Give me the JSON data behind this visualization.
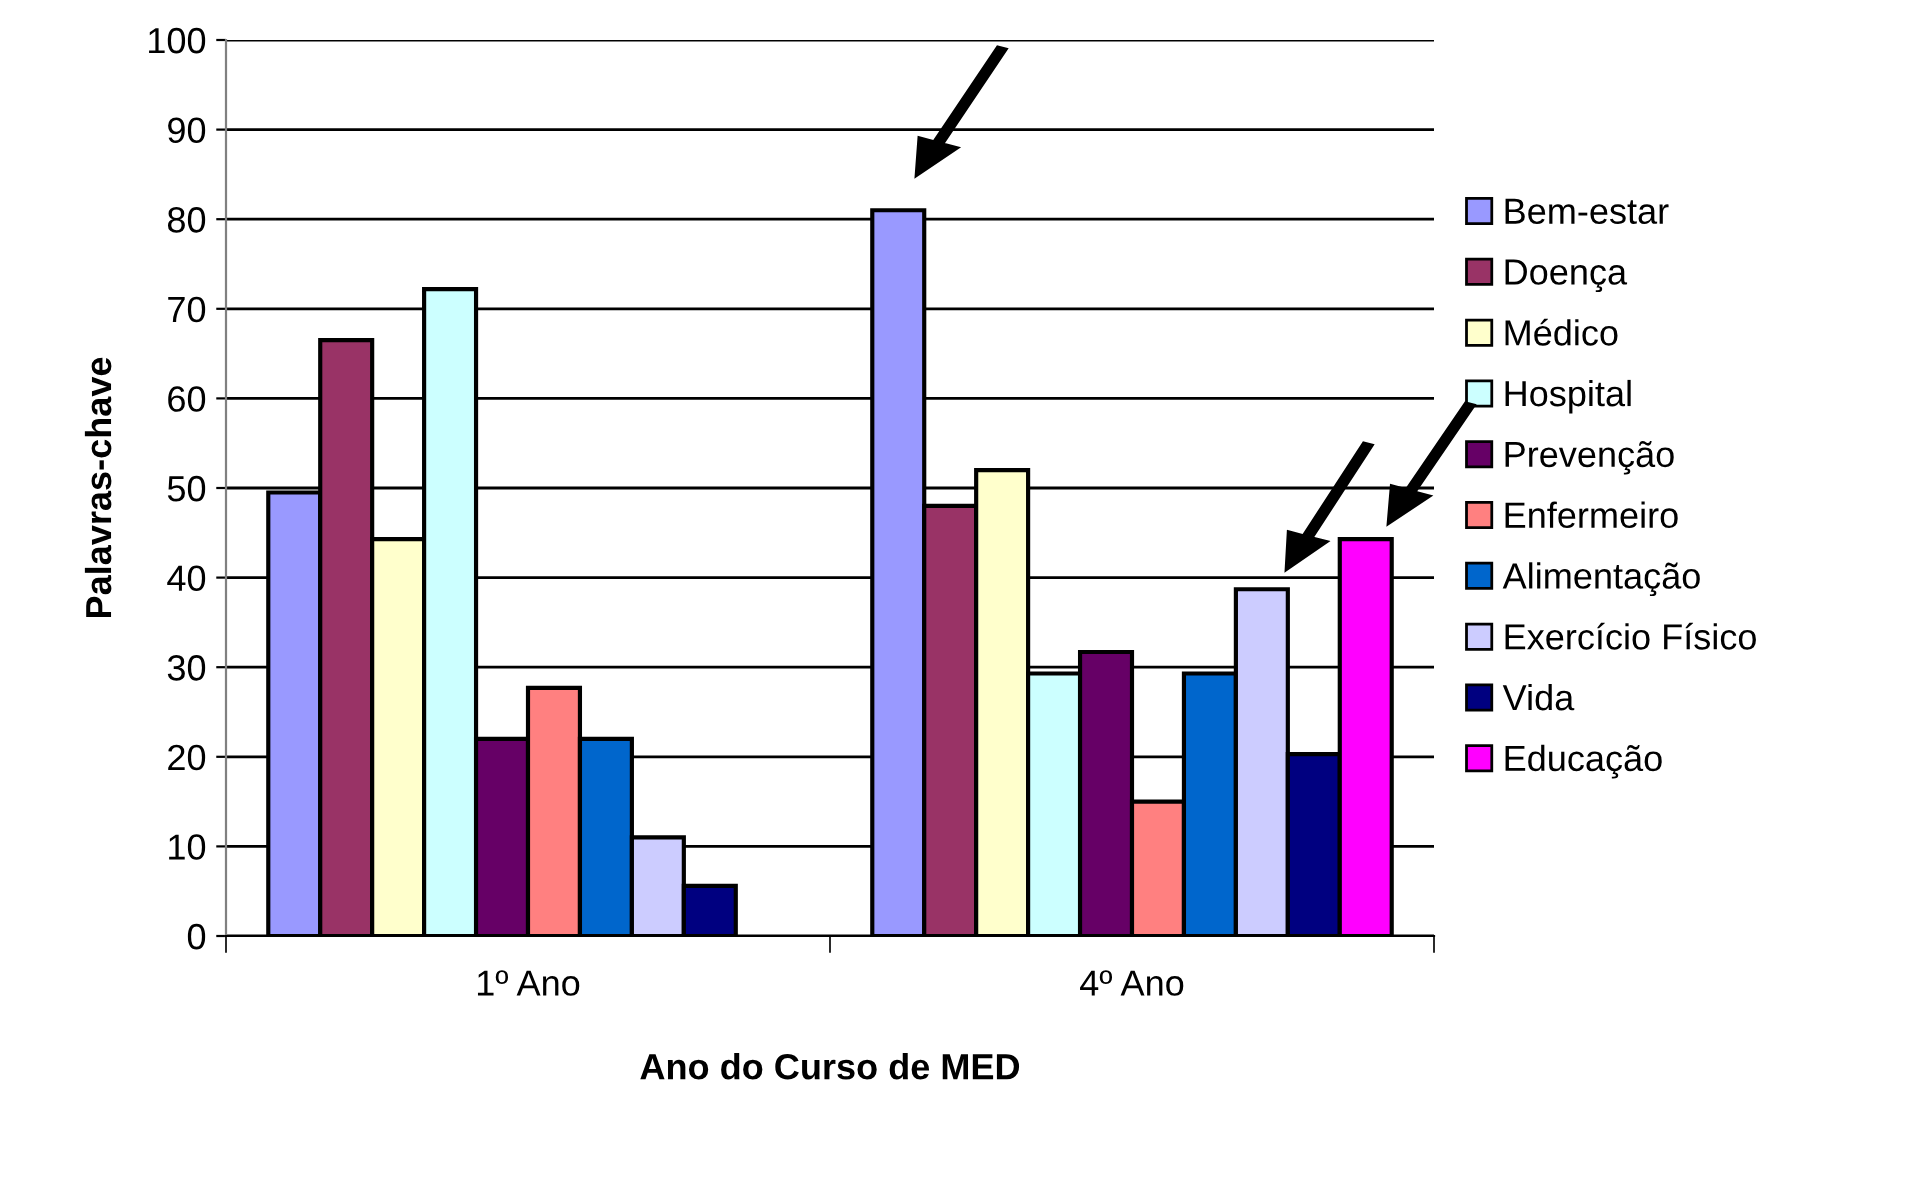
{
  "chart_data": {
    "type": "bar",
    "xlabel": "Ano do Curso de MED",
    "ylabel": "Palavras-chave",
    "categories": [
      "1º Ano",
      "4º Ano"
    ],
    "series": [
      {
        "name": "Bem-estar",
        "color": "#9999ff",
        "values": [
          49.5,
          81
        ]
      },
      {
        "name": "Doença",
        "color": "#993366",
        "values": [
          66.5,
          48
        ]
      },
      {
        "name": "Médico",
        "color": "#ffffcc",
        "values": [
          44.3,
          52
        ]
      },
      {
        "name": "Hospital",
        "color": "#ccffff",
        "values": [
          72.2,
          29.3
        ]
      },
      {
        "name": "Prevenção",
        "color": "#660066",
        "values": [
          22,
          31.7
        ]
      },
      {
        "name": "Enfermeiro",
        "color": "#ff8080",
        "values": [
          27.7,
          15
        ]
      },
      {
        "name": "Alimentação",
        "color": "#0066cc",
        "values": [
          22,
          29.3
        ]
      },
      {
        "name": "Exercício Físico",
        "color": "#ccccff",
        "values": [
          11,
          38.7
        ]
      },
      {
        "name": "Vida",
        "color": "#000080",
        "values": [
          5.6,
          20.3
        ]
      },
      {
        "name": "Educação",
        "color": "#ff00ff",
        "values": [
          null,
          44.3
        ]
      }
    ],
    "ylim": [
      0,
      100
    ],
    "yticks": [
      0,
      10,
      20,
      30,
      40,
      50,
      60,
      70,
      80,
      90,
      100
    ],
    "grid": "y",
    "legend": "right"
  }
}
